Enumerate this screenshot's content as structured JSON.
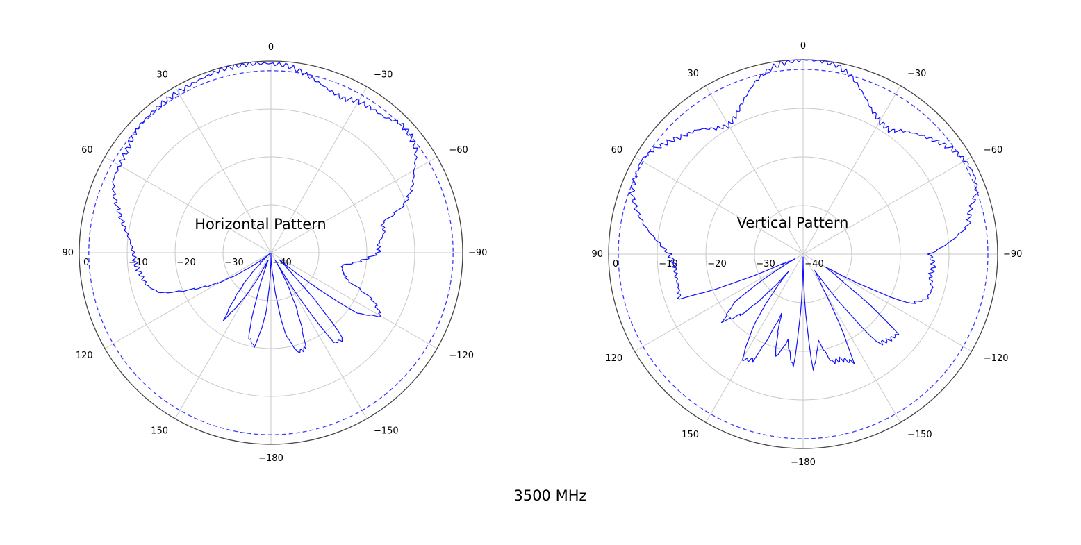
{
  "caption": "3500 MHz",
  "chart_data": [
    {
      "type": "polar-line",
      "title": "Horizontal Pattern",
      "angle_ticks": [
        "0",
        "30",
        "60",
        "90",
        "120",
        "150",
        "−180",
        "−150",
        "−120",
        "−90",
        "−60",
        "−30"
      ],
      "radial_ticks": [
        "0",
        "−10",
        "−20",
        "−30",
        "−40"
      ],
      "r_range": [
        -40,
        0
      ],
      "grid": true,
      "reference_level_db": -2,
      "colors": {
        "trace": "#1010ff",
        "reference": "#3a3aff",
        "grid": "#c8c8c8",
        "outer": "#444444"
      },
      "series": [
        {
          "angles": [
            0,
            5,
            10,
            15,
            20,
            25,
            30,
            35,
            40,
            45,
            50,
            55,
            60,
            65,
            70,
            75,
            80,
            85,
            90,
            95,
            100,
            105,
            110,
            115,
            120,
            125,
            130,
            135,
            140,
            145,
            150,
            155,
            160,
            165,
            170,
            175,
            180,
            185,
            190,
            195,
            200,
            205,
            210,
            215,
            220,
            225,
            230,
            235,
            240,
            245,
            250,
            255,
            260,
            265,
            270,
            275,
            280,
            285,
            290,
            295,
            300,
            305,
            310,
            315,
            320,
            325,
            330,
            335,
            340,
            345,
            350,
            355
          ],
          "values": [
            -0.5,
            -0.4,
            -0.3,
            -0.4,
            -0.8,
            -1.1,
            -1.3,
            -1.4,
            -1.6,
            -1.8,
            -2.4,
            -3.2,
            -3.6,
            -3.7,
            -5.2,
            -7.2,
            -8.9,
            -10.5,
            -11.3,
            -11.7,
            -12.5,
            -13.3,
            -15.5,
            -22.0,
            -27.5,
            -35.0,
            -40.0,
            -37.0,
            -30.0,
            -23.0,
            -30.0,
            -37.0,
            -38.0,
            -22.0,
            -20.0,
            -27.0,
            -40.0,
            -35.0,
            -23.0,
            -18.5,
            -18.8,
            -28.0,
            -38.0,
            -17.0,
            -16.5,
            -34.0,
            -38.0,
            -18.0,
            -13.5,
            -16.5,
            -23.0,
            -24.5,
            -25.0,
            -21.0,
            -17.5,
            -17.5,
            -16.0,
            -16.0,
            -10.3,
            -7.5,
            -5.5,
            -3.0,
            -2.0,
            -1.8,
            -3.1,
            -3.3,
            -3.5,
            -4.5,
            -4.0,
            -3.0,
            -1.8,
            -0.8
          ]
        }
      ]
    },
    {
      "type": "polar-line",
      "title": "Vertical Pattern",
      "angle_ticks": [
        "0",
        "30",
        "60",
        "90",
        "120",
        "150",
        "−180",
        "−150",
        "−120",
        "−90",
        "−60",
        "−30"
      ],
      "radial_ticks": [
        "0",
        "−10",
        "−20",
        "−30",
        "−40"
      ],
      "r_range": [
        -40,
        0
      ],
      "grid": true,
      "reference_level_db": -2,
      "colors": {
        "trace": "#1010ff",
        "reference": "#3a3aff",
        "grid": "#c8c8c8",
        "outer": "#444444"
      },
      "series": [
        {
          "angles": [
            0,
            5,
            10,
            15,
            20,
            25,
            30,
            35,
            40,
            45,
            50,
            55,
            60,
            65,
            70,
            75,
            80,
            85,
            90,
            95,
            100,
            105,
            110,
            115,
            120,
            125,
            130,
            135,
            140,
            145,
            150,
            155,
            160,
            165,
            170,
            175,
            180,
            185,
            190,
            195,
            200,
            205,
            210,
            215,
            220,
            225,
            230,
            235,
            240,
            245,
            250,
            255,
            260,
            265,
            270,
            275,
            280,
            285,
            290,
            295,
            300,
            305,
            310,
            315,
            320,
            325,
            330,
            335,
            340,
            345,
            350,
            355
          ],
          "values": [
            0.0,
            -0.3,
            -1.2,
            -3.0,
            -5.5,
            -8.0,
            -9.5,
            -8.5,
            -6.5,
            -5.5,
            -4.0,
            -2.5,
            -1.5,
            -2.0,
            -2.5,
            -4.5,
            -7.0,
            -10.0,
            -12.5,
            -13.5,
            -13.5,
            -13.5,
            -13.0,
            -35.0,
            -38.0,
            -23.0,
            -18.5,
            -23.0,
            -35.0,
            -23.0,
            -15.0,
            -16.0,
            -27.0,
            -18.0,
            -22.0,
            -16.5,
            -40.0,
            -16.0,
            -22.0,
            -17.0,
            -17.0,
            -15.5,
            -32.0,
            -36.0,
            -16.0,
            -15.0,
            -14.5,
            -30.0,
            -35.0,
            -16.0,
            -13.0,
            -12.5,
            -13.5,
            -13.0,
            -14.0,
            -9.5,
            -5.5,
            -4.5,
            -2.0,
            -1.2,
            -1.5,
            -2.5,
            -4.0,
            -5.5,
            -7.0,
            -9.0,
            -8.5,
            -7.0,
            -4.5,
            -2.0,
            -0.5,
            0.0
          ]
        }
      ]
    }
  ]
}
